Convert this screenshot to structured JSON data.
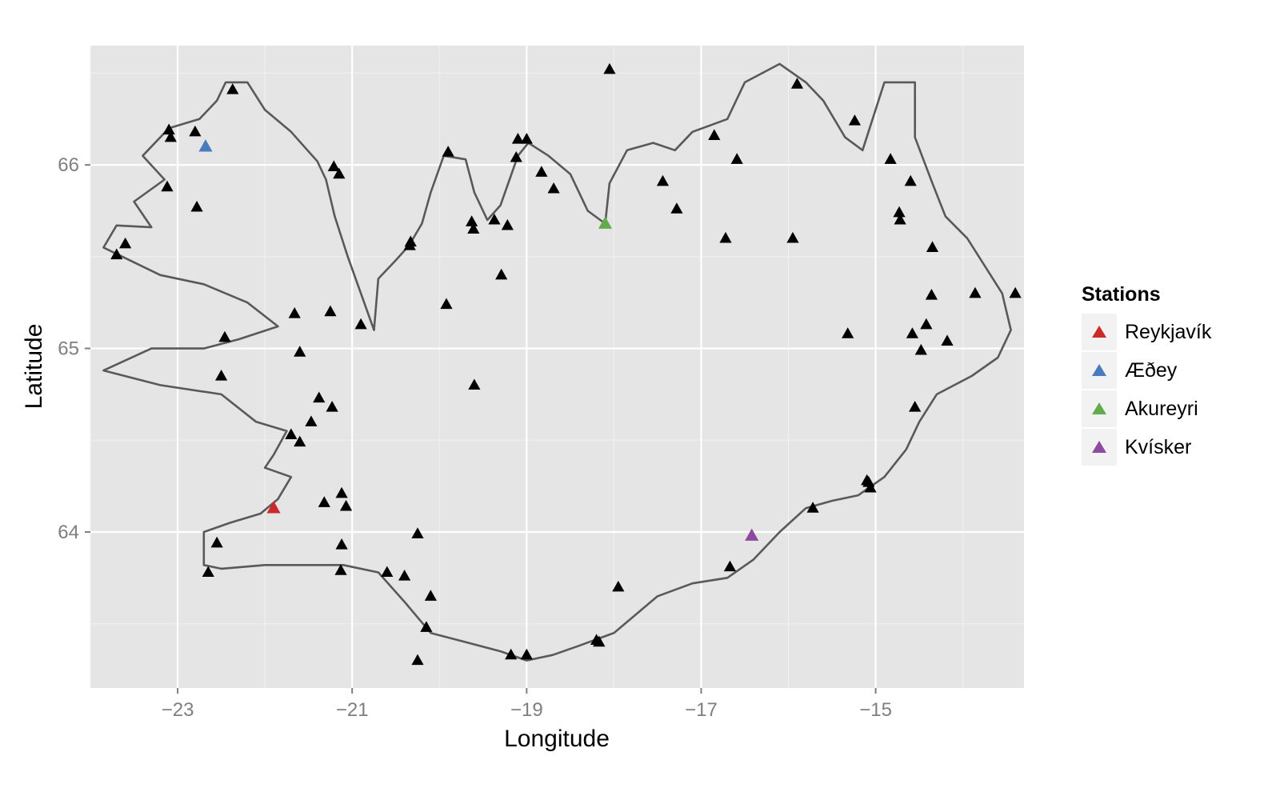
{
  "chart_data": {
    "type": "scatter",
    "xlabel": "Longitude",
    "ylabel": "Latitude",
    "xlim": [
      -24.0,
      -13.3
    ],
    "ylim": [
      63.15,
      66.65
    ],
    "x_ticks": [
      -23,
      -21,
      -19,
      -17,
      -15
    ],
    "x_tick_labels": [
      "−23",
      "−21",
      "−19",
      "−17",
      "−15"
    ],
    "y_ticks": [
      64,
      65,
      66
    ],
    "y_tick_labels": [
      "64",
      "65",
      "66"
    ],
    "grid": true,
    "legend": {
      "title": "Stations",
      "placement": "right",
      "entries": [
        "Reykjavík",
        "Æðey",
        "Akureyri",
        "Kvísker"
      ]
    },
    "highlighted_stations": [
      {
        "name": "Reykjavík",
        "lon": -21.9,
        "lat": 64.13,
        "color": "#cc2a2a"
      },
      {
        "name": "Æðey",
        "lon": -22.68,
        "lat": 66.1,
        "color": "#4a7bbd"
      },
      {
        "name": "Akureyri",
        "lon": -18.1,
        "lat": 65.68,
        "color": "#62ac4b"
      },
      {
        "name": "Kvísker",
        "lon": -16.42,
        "lat": 63.98,
        "color": "#8e4a9f"
      }
    ],
    "other_stations_color": "#000000",
    "other_stations": [
      [
        -22.37,
        66.41
      ],
      [
        -23.1,
        66.19
      ],
      [
        -23.08,
        66.15
      ],
      [
        -22.8,
        66.18
      ],
      [
        -23.12,
        65.88
      ],
      [
        -22.78,
        65.77
      ],
      [
        -23.6,
        65.57
      ],
      [
        -23.7,
        65.51
      ],
      [
        -21.21,
        65.99
      ],
      [
        -21.15,
        65.95
      ],
      [
        -19.9,
        66.07
      ],
      [
        -21.25,
        65.2
      ],
      [
        -20.9,
        65.13
      ],
      [
        -21.66,
        65.19
      ],
      [
        -22.46,
        65.06
      ],
      [
        -21.6,
        64.98
      ],
      [
        -22.5,
        64.85
      ],
      [
        -21.38,
        64.73
      ],
      [
        -21.23,
        64.68
      ],
      [
        -21.47,
        64.6
      ],
      [
        -21.7,
        64.53
      ],
      [
        -21.6,
        64.49
      ],
      [
        -21.12,
        64.21
      ],
      [
        -21.32,
        64.16
      ],
      [
        -21.07,
        64.14
      ],
      [
        -20.33,
        65.58
      ],
      [
        -20.34,
        65.56
      ],
      [
        -19.92,
        65.24
      ],
      [
        -19.63,
        65.69
      ],
      [
        -19.61,
        65.65
      ],
      [
        -19.37,
        65.7
      ],
      [
        -19.22,
        65.67
      ],
      [
        -19.29,
        65.4
      ],
      [
        -19.1,
        66.14
      ],
      [
        -19.0,
        66.14
      ],
      [
        -19.12,
        66.04
      ],
      [
        -18.83,
        65.96
      ],
      [
        -18.69,
        65.87
      ],
      [
        -18.05,
        66.52
      ],
      [
        -17.44,
        65.91
      ],
      [
        -17.28,
        65.76
      ],
      [
        -16.85,
        66.16
      ],
      [
        -16.59,
        66.03
      ],
      [
        -16.72,
        65.6
      ],
      [
        -15.95,
        65.6
      ],
      [
        -15.9,
        66.44
      ],
      [
        -15.24,
        66.24
      ],
      [
        -14.83,
        66.03
      ],
      [
        -14.6,
        65.91
      ],
      [
        -14.73,
        65.74
      ],
      [
        -14.72,
        65.7
      ],
      [
        -14.35,
        65.55
      ],
      [
        -14.36,
        65.29
      ],
      [
        -13.86,
        65.3
      ],
      [
        -13.4,
        65.3
      ],
      [
        -15.32,
        65.08
      ],
      [
        -14.58,
        65.08
      ],
      [
        -14.42,
        65.13
      ],
      [
        -14.48,
        64.99
      ],
      [
        -14.18,
        65.04
      ],
      [
        -19.6,
        64.8
      ],
      [
        -20.25,
        63.99
      ],
      [
        -20.1,
        63.65
      ],
      [
        -20.15,
        63.48
      ],
      [
        -20.4,
        63.76
      ],
      [
        -20.6,
        63.78
      ],
      [
        -20.25,
        63.3
      ],
      [
        -21.12,
        63.93
      ],
      [
        -21.13,
        63.79
      ],
      [
        -22.65,
        63.78
      ],
      [
        -22.55,
        63.94
      ],
      [
        -19.18,
        63.33
      ],
      [
        -19.0,
        63.33
      ],
      [
        -18.2,
        63.41
      ],
      [
        -18.17,
        63.4
      ],
      [
        -17.95,
        63.7
      ],
      [
        -16.67,
        63.81
      ],
      [
        -15.72,
        64.13
      ],
      [
        -15.1,
        64.28
      ],
      [
        -15.08,
        64.27
      ],
      [
        -15.06,
        64.24
      ],
      [
        -14.55,
        64.68
      ]
    ],
    "coastline": [
      [
        -23.85,
        65.55
      ],
      [
        -23.7,
        65.67
      ],
      [
        -23.3,
        65.66
      ],
      [
        -23.5,
        65.8
      ],
      [
        -23.15,
        65.92
      ],
      [
        -23.4,
        66.05
      ],
      [
        -23.1,
        66.2
      ],
      [
        -22.75,
        66.25
      ],
      [
        -22.55,
        66.35
      ],
      [
        -22.45,
        66.45
      ],
      [
        -22.2,
        66.45
      ],
      [
        -22.0,
        66.3
      ],
      [
        -21.7,
        66.18
      ],
      [
        -21.55,
        66.1
      ],
      [
        -21.4,
        66.02
      ],
      [
        -21.3,
        65.92
      ],
      [
        -21.2,
        65.72
      ],
      [
        -21.05,
        65.5
      ],
      [
        -20.9,
        65.3
      ],
      [
        -20.75,
        65.1
      ],
      [
        -20.7,
        65.38
      ],
      [
        -20.5,
        65.48
      ],
      [
        -20.35,
        65.56
      ],
      [
        -20.2,
        65.68
      ],
      [
        -20.1,
        65.85
      ],
      [
        -19.95,
        66.05
      ],
      [
        -19.7,
        66.03
      ],
      [
        -19.6,
        65.85
      ],
      [
        -19.45,
        65.7
      ],
      [
        -19.3,
        65.78
      ],
      [
        -19.1,
        66.05
      ],
      [
        -18.98,
        66.12
      ],
      [
        -18.75,
        66.05
      ],
      [
        -18.5,
        65.95
      ],
      [
        -18.3,
        65.75
      ],
      [
        -18.1,
        65.68
      ],
      [
        -18.05,
        65.9
      ],
      [
        -17.85,
        66.08
      ],
      [
        -17.55,
        66.12
      ],
      [
        -17.3,
        66.08
      ],
      [
        -17.1,
        66.18
      ],
      [
        -16.7,
        66.25
      ],
      [
        -16.5,
        66.45
      ],
      [
        -16.1,
        66.55
      ],
      [
        -15.8,
        66.45
      ],
      [
        -15.6,
        66.35
      ],
      [
        -15.35,
        66.15
      ],
      [
        -15.15,
        66.08
      ],
      [
        -14.9,
        66.45
      ],
      [
        -14.55,
        66.45
      ],
      [
        -14.55,
        66.15
      ],
      [
        -14.35,
        65.9
      ],
      [
        -14.2,
        65.72
      ],
      [
        -13.95,
        65.6
      ],
      [
        -13.75,
        65.45
      ],
      [
        -13.55,
        65.3
      ],
      [
        -13.45,
        65.1
      ],
      [
        -13.6,
        64.95
      ],
      [
        -13.9,
        64.85
      ],
      [
        -14.3,
        64.75
      ],
      [
        -14.5,
        64.6
      ],
      [
        -14.65,
        64.45
      ],
      [
        -14.9,
        64.3
      ],
      [
        -15.2,
        64.2
      ],
      [
        -15.5,
        64.17
      ],
      [
        -15.8,
        64.13
      ],
      [
        -16.1,
        64.0
      ],
      [
        -16.4,
        63.85
      ],
      [
        -16.7,
        63.75
      ],
      [
        -17.1,
        63.72
      ],
      [
        -17.5,
        63.65
      ],
      [
        -17.75,
        63.55
      ],
      [
        -18.0,
        63.45
      ],
      [
        -18.4,
        63.38
      ],
      [
        -18.7,
        63.33
      ],
      [
        -19.0,
        63.3
      ],
      [
        -19.3,
        63.35
      ],
      [
        -19.7,
        63.4
      ],
      [
        -20.1,
        63.45
      ],
      [
        -20.4,
        63.62
      ],
      [
        -20.7,
        63.78
      ],
      [
        -21.1,
        63.82
      ],
      [
        -21.5,
        63.82
      ],
      [
        -22.0,
        63.82
      ],
      [
        -22.5,
        63.8
      ],
      [
        -22.7,
        63.82
      ],
      [
        -22.7,
        64.0
      ],
      [
        -22.4,
        64.05
      ],
      [
        -22.05,
        64.1
      ],
      [
        -21.85,
        64.18
      ],
      [
        -21.7,
        64.3
      ],
      [
        -22.0,
        64.35
      ],
      [
        -21.9,
        64.42
      ],
      [
        -21.75,
        64.55
      ],
      [
        -22.1,
        64.6
      ],
      [
        -22.5,
        64.75
      ],
      [
        -23.2,
        64.8
      ],
      [
        -23.85,
        64.88
      ],
      [
        -23.3,
        65.0
      ],
      [
        -22.7,
        65.0
      ],
      [
        -22.3,
        65.05
      ],
      [
        -21.85,
        65.12
      ],
      [
        -22.2,
        65.25
      ],
      [
        -22.7,
        65.35
      ],
      [
        -23.2,
        65.4
      ],
      [
        -23.85,
        65.55
      ]
    ]
  }
}
